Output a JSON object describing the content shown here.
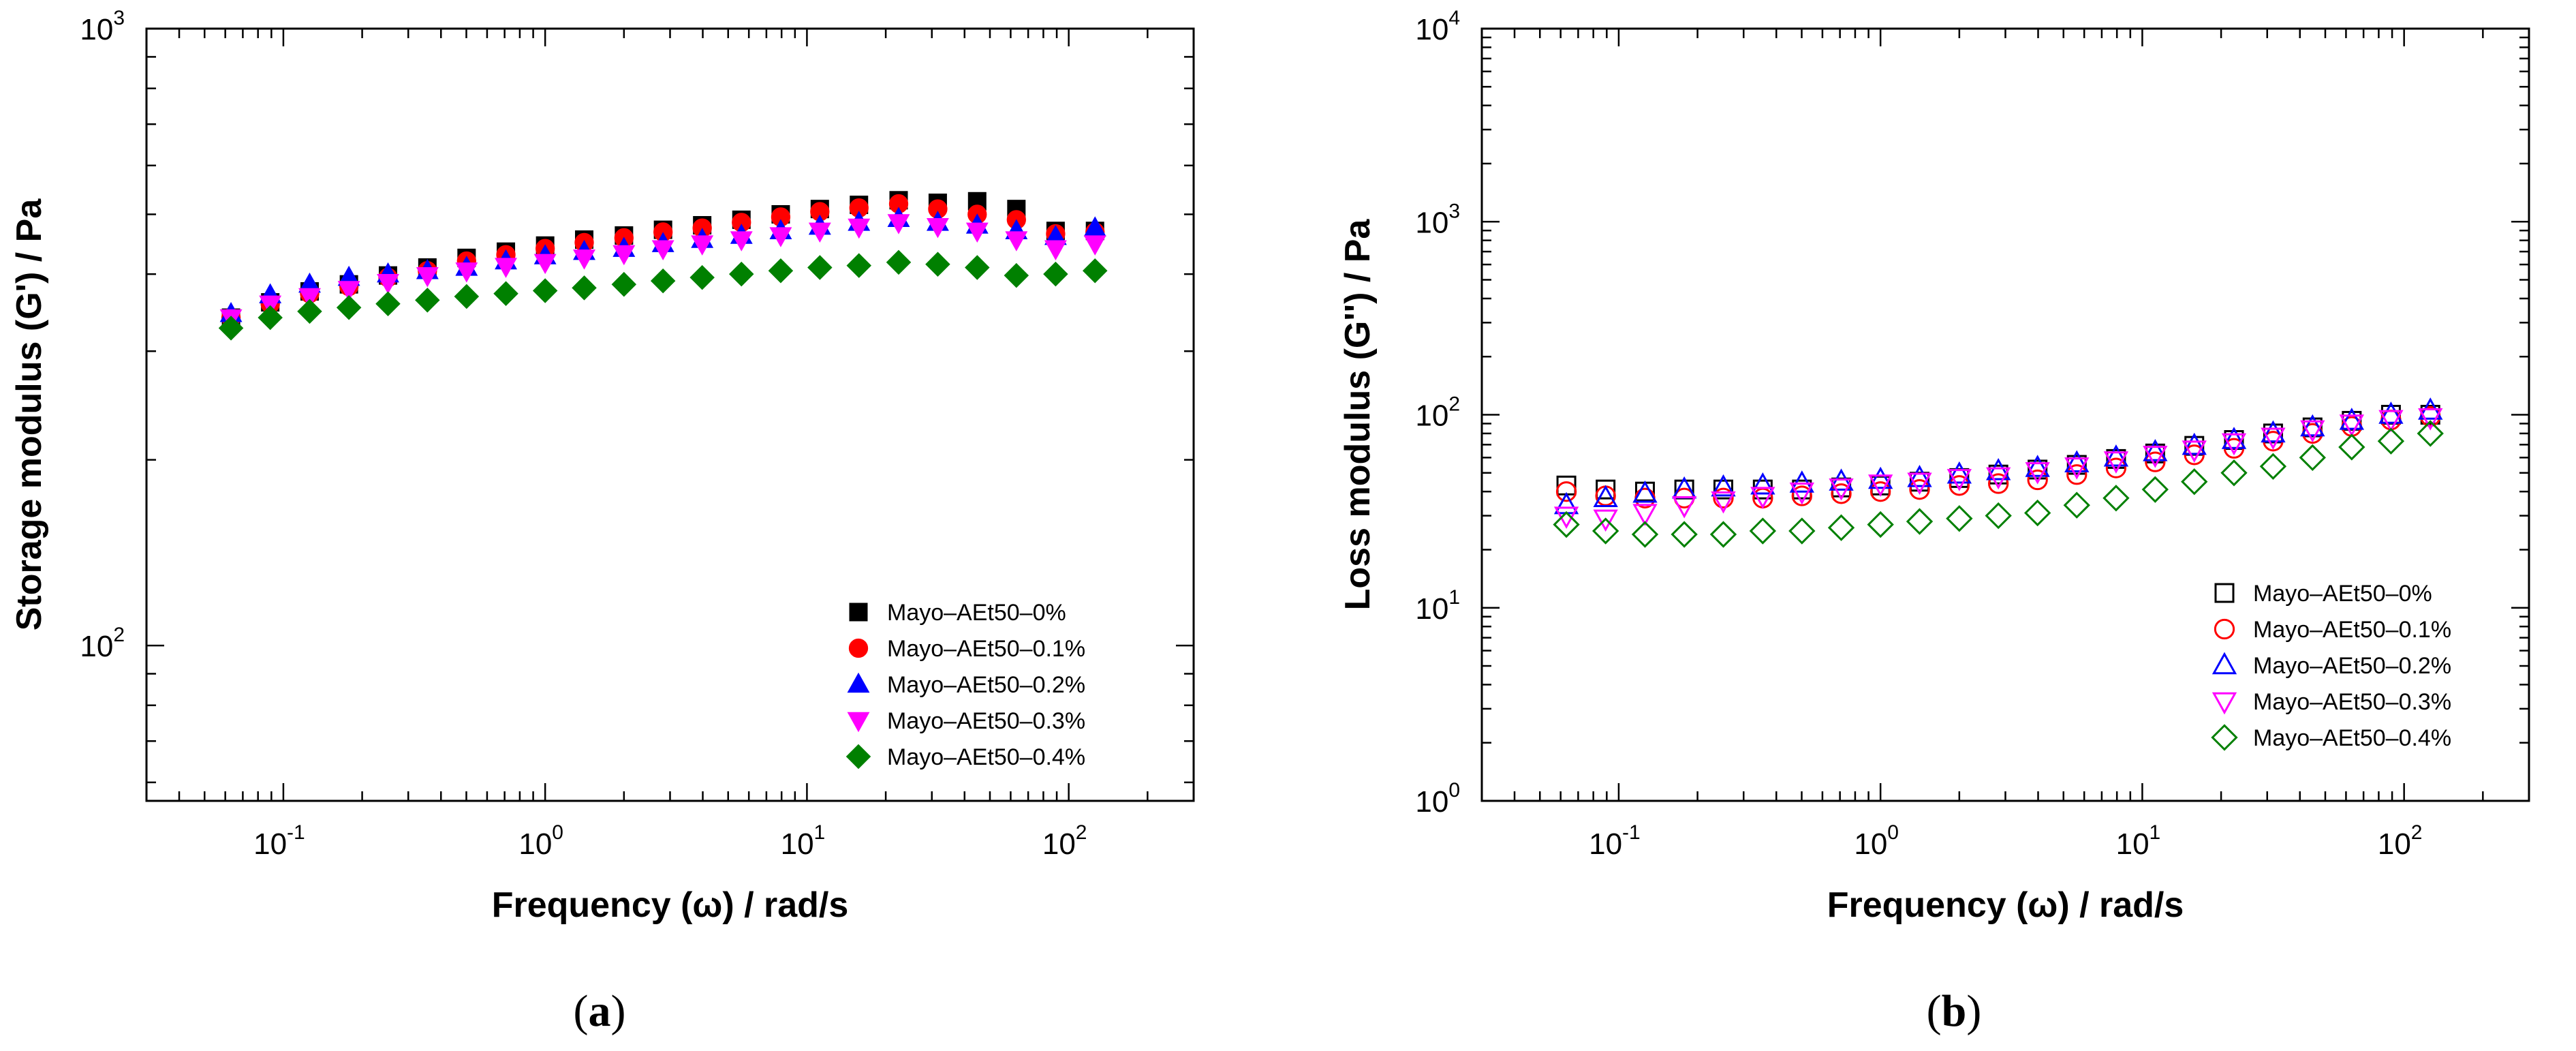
{
  "chart_data": [
    {
      "type": "scatter",
      "panel": "a",
      "panel_label_open": "(",
      "panel_label_letter": "a",
      "panel_label_close": ")",
      "xlabel": "Frequency (ω) / rad/s",
      "ylabel": "Storage modulus (G') / Pa",
      "xscale": "log",
      "yscale": "log",
      "xlim": [
        0.03,
        300
      ],
      "ylim": [
        56,
        1000
      ],
      "x_ticks": [
        {
          "base": "10",
          "exp": "-1",
          "value": 0.1
        },
        {
          "base": "10",
          "exp": "0",
          "value": 1
        },
        {
          "base": "10",
          "exp": "1",
          "value": 10
        },
        {
          "base": "10",
          "exp": "2",
          "value": 100
        }
      ],
      "y_ticks": [
        {
          "base": "10",
          "exp": "2",
          "value": 100
        },
        {
          "base": "10",
          "exp": "3",
          "value": 1000
        }
      ],
      "marker_fill": "filled",
      "legend_position": "bottom-right",
      "x": [
        0.0631,
        0.0891,
        0.126,
        0.178,
        0.251,
        0.355,
        0.501,
        0.708,
        1.0,
        1.41,
        2.0,
        2.82,
        3.98,
        5.62,
        7.94,
        11.2,
        15.8,
        22.4,
        31.6,
        44.7,
        63.1,
        89.1,
        126
      ],
      "series": [
        {
          "name": "Mayo–AEt50–0%",
          "marker": "square",
          "color": "#000000",
          "values": [
            340,
            360,
            375,
            385,
            398,
            410,
            425,
            435,
            445,
            455,
            462,
            472,
            480,
            490,
            500,
            510,
            518,
            527,
            522,
            525,
            510,
            470,
            470
          ]
        },
        {
          "name": "Mayo–AEt50–0.1%",
          "marker": "circle",
          "color": "#ff0000",
          "values": [
            340,
            358,
            372,
            382,
            395,
            405,
            420,
            430,
            440,
            450,
            458,
            468,
            475,
            485,
            495,
            505,
            512,
            520,
            510,
            500,
            490,
            465,
            468
          ]
        },
        {
          "name": "Mayo–AEt50–0.2%",
          "marker": "triangle-up",
          "color": "#0000ff",
          "values": [
            345,
            370,
            385,
            395,
            400,
            405,
            410,
            420,
            428,
            435,
            440,
            448,
            455,
            462,
            470,
            478,
            485,
            492,
            485,
            480,
            470,
            460,
            475
          ]
        },
        {
          "name": "Mayo–AEt50–0.3%",
          "marker": "triangle-down",
          "color": "#ff00ff",
          "values": [
            340,
            358,
            368,
            378,
            388,
            398,
            405,
            412,
            418,
            425,
            432,
            440,
            448,
            455,
            462,
            470,
            477,
            485,
            478,
            470,
            455,
            440,
            448
          ]
        },
        {
          "name": "Mayo–AEt50–0.4%",
          "marker": "diamond",
          "color": "#008000",
          "values": [
            327,
            340,
            348,
            353,
            358,
            363,
            368,
            372,
            376,
            380,
            385,
            390,
            395,
            400,
            405,
            410,
            413,
            418,
            415,
            410,
            398,
            400,
            405
          ]
        }
      ]
    },
    {
      "type": "scatter",
      "panel": "b",
      "panel_label_open": "(",
      "panel_label_letter": "b",
      "panel_label_close": ")",
      "xlabel": "Frequency (ω) / rad/s",
      "ylabel": "Loss modulus (G'') / Pa",
      "xscale": "log",
      "yscale": "log",
      "xlim": [
        0.03,
        300
      ],
      "ylim": [
        1,
        10000
      ],
      "x_ticks": [
        {
          "base": "10",
          "exp": "-1",
          "value": 0.1
        },
        {
          "base": "10",
          "exp": "0",
          "value": 1
        },
        {
          "base": "10",
          "exp": "1",
          "value": 10
        },
        {
          "base": "10",
          "exp": "2",
          "value": 100
        }
      ],
      "y_ticks": [
        {
          "base": "10",
          "exp": "0",
          "value": 1
        },
        {
          "base": "10",
          "exp": "1",
          "value": 10
        },
        {
          "base": "10",
          "exp": "2",
          "value": 100
        },
        {
          "base": "10",
          "exp": "3",
          "value": 1000
        },
        {
          "base": "10",
          "exp": "4",
          "value": 10000
        }
      ],
      "marker_fill": "open",
      "legend_position": "bottom-right",
      "x": [
        0.0631,
        0.0891,
        0.126,
        0.178,
        0.251,
        0.355,
        0.501,
        0.708,
        1.0,
        1.41,
        2.0,
        2.82,
        3.98,
        5.62,
        7.94,
        11.2,
        15.8,
        22.4,
        31.6,
        44.7,
        63.1,
        89.1,
        126
      ],
      "series": [
        {
          "name": "Mayo–AEt50–0%",
          "marker": "square",
          "color": "#000000",
          "values": [
            43,
            41,
            40,
            41,
            41,
            41,
            41,
            42,
            43,
            45,
            47,
            49,
            52,
            55,
            59,
            63,
            69,
            74,
            80,
            86,
            93,
            100,
            100
          ]
        },
        {
          "name": "Mayo–AEt50–0.1%",
          "marker": "circle",
          "color": "#ff0000",
          "values": [
            40,
            38,
            37,
            37,
            37,
            37,
            38,
            39,
            40,
            41,
            43,
            44,
            46,
            49,
            53,
            57,
            62,
            67,
            73,
            80,
            87,
            94,
            98
          ]
        },
        {
          "name": "Mayo–AEt50–0.2%",
          "marker": "triangle-up",
          "color": "#0000ff",
          "values": [
            34,
            37,
            39,
            41,
            42,
            43,
            44,
            45,
            46,
            47,
            49,
            51,
            53,
            56,
            60,
            64,
            69,
            74,
            80,
            86,
            93,
            100,
            105
          ]
        },
        {
          "name": "Mayo–AEt50–0.3%",
          "marker": "triangle-down",
          "color": "#ff00ff",
          "values": [
            30,
            29,
            31,
            34,
            36,
            38,
            40,
            42,
            44,
            45,
            47,
            48,
            51,
            54,
            58,
            62,
            66,
            72,
            77,
            84,
            90,
            95,
            97
          ]
        },
        {
          "name": "Mayo–AEt50–0.4%",
          "marker": "diamond",
          "color": "#008000",
          "values": [
            27,
            25,
            24,
            24,
            24,
            25,
            25,
            26,
            27,
            28,
            29,
            30,
            31,
            34,
            37,
            41,
            45,
            50,
            54,
            60,
            68,
            73,
            80
          ]
        }
      ]
    }
  ]
}
